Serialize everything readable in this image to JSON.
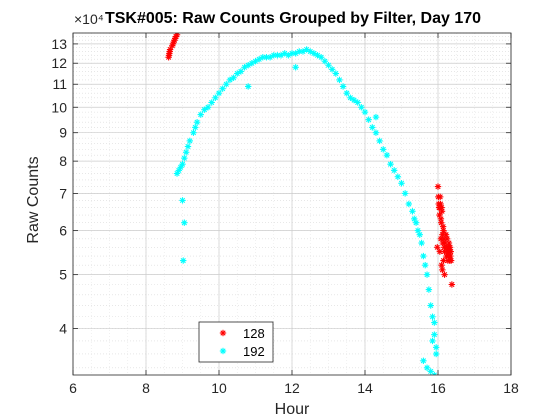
{
  "chart_data": {
    "type": "scatter",
    "title": "TSK#005: Raw Counts Grouped by Filter, Day 170",
    "xlabel": "Hour",
    "ylabel": "Raw  Counts",
    "y_multiplier": "×10⁴",
    "xlim": [
      6,
      18
    ],
    "ylim": [
      3.3,
      13.6
    ],
    "yscale": "log",
    "xticks": [
      6,
      8,
      10,
      12,
      14,
      16,
      18
    ],
    "yticks": [
      4,
      5,
      6,
      7,
      8,
      9,
      10,
      11,
      12,
      13
    ],
    "grid": true,
    "legend_location": "bottom-left",
    "marker": "*",
    "series": [
      {
        "name": "128",
        "color": "#ff0000",
        "x": [
          8.62,
          8.63,
          8.64,
          8.65,
          8.66,
          8.72,
          8.74,
          8.76,
          8.78,
          8.8,
          8.82,
          8.85,
          15.98,
          16.0,
          16.01,
          16.02,
          16.03,
          16.04,
          16.05,
          16.06,
          16.07,
          16.08,
          16.09,
          16.1,
          16.11,
          16.12,
          16.13,
          16.14,
          16.15,
          16.16,
          16.17,
          16.18,
          16.2,
          16.22,
          16.23,
          16.24,
          16.25,
          16.26,
          16.27,
          16.28,
          16.29,
          16.3,
          16.31,
          16.32,
          16.33,
          16.34,
          16.35,
          16.36,
          16.12,
          16.1,
          16.38,
          16.15,
          16.18,
          16.05,
          16.08
        ],
        "y": [
          12.3,
          12.4,
          12.5,
          12.6,
          12.7,
          12.9,
          13.0,
          13.1,
          13.2,
          13.3,
          13.4,
          13.5,
          5.6,
          7.2,
          6.9,
          6.7,
          6.6,
          6.4,
          6.6,
          6.9,
          6.7,
          6.3,
          6.2,
          6.6,
          6.5,
          5.9,
          5.7,
          6.1,
          6.0,
          5.8,
          5.6,
          5.5,
          5.7,
          5.9,
          5.4,
          5.6,
          5.8,
          5.5,
          5.3,
          5.4,
          5.6,
          5.7,
          5.5,
          5.3,
          5.6,
          5.4,
          5.5,
          5.3,
          5.1,
          5.2,
          4.8,
          5.3,
          5.0,
          5.5,
          5.8
        ]
      },
      {
        "name": "192",
        "color": "#00ffff",
        "x": [
          8.85,
          8.9,
          8.95,
          9.0,
          9.05,
          9.1,
          9.15,
          9.2,
          9.3,
          9.35,
          9.4,
          9.5,
          9.6,
          9.7,
          9.8,
          9.9,
          10.0,
          10.1,
          10.2,
          10.3,
          10.4,
          10.5,
          10.6,
          10.7,
          10.8,
          10.9,
          11.0,
          11.1,
          11.2,
          11.3,
          11.4,
          11.5,
          11.6,
          11.7,
          11.8,
          11.9,
          12.0,
          12.1,
          12.2,
          12.3,
          12.4,
          12.5,
          12.6,
          12.7,
          12.8,
          12.9,
          13.0,
          13.1,
          13.2,
          13.3,
          13.4,
          13.5,
          13.6,
          13.7,
          13.8,
          13.9,
          14.0,
          14.1,
          14.2,
          14.3,
          14.4,
          14.5,
          14.6,
          14.7,
          14.8,
          14.9,
          15.0,
          15.1,
          15.2,
          15.3,
          15.35,
          15.4,
          15.45,
          15.5,
          15.55,
          15.6,
          15.65,
          15.7,
          15.75,
          15.8,
          15.85,
          15.9,
          15.95,
          15.6,
          15.7,
          15.8,
          15.85,
          15.9,
          15.95,
          9.0,
          9.05,
          9.02,
          10.8,
          12.1,
          14.3,
          15.9
        ],
        "y": [
          7.6,
          7.7,
          7.8,
          7.9,
          8.1,
          8.3,
          8.5,
          8.7,
          9.0,
          9.2,
          9.4,
          9.7,
          9.9,
          10.0,
          10.2,
          10.4,
          10.6,
          10.8,
          11.0,
          11.2,
          11.3,
          11.5,
          11.6,
          11.8,
          11.9,
          12.0,
          12.1,
          12.2,
          12.3,
          12.3,
          12.3,
          12.4,
          12.4,
          12.4,
          12.5,
          12.4,
          12.5,
          12.5,
          12.6,
          12.6,
          12.7,
          12.6,
          12.5,
          12.4,
          12.3,
          12.1,
          11.9,
          11.7,
          11.5,
          11.2,
          10.9,
          10.6,
          10.4,
          10.3,
          10.2,
          10.0,
          9.8,
          9.5,
          9.2,
          9.0,
          8.7,
          8.4,
          8.2,
          7.9,
          7.7,
          7.5,
          7.3,
          7.0,
          6.7,
          6.5,
          6.3,
          6.2,
          6.0,
          5.9,
          5.7,
          5.4,
          5.2,
          5.0,
          4.7,
          4.4,
          4.2,
          3.9,
          3.7,
          3.5,
          3.4,
          3.35,
          3.8,
          4.1,
          3.6,
          6.8,
          6.2,
          5.3,
          10.9,
          11.8,
          9.6,
          3.3
        ]
      }
    ]
  }
}
